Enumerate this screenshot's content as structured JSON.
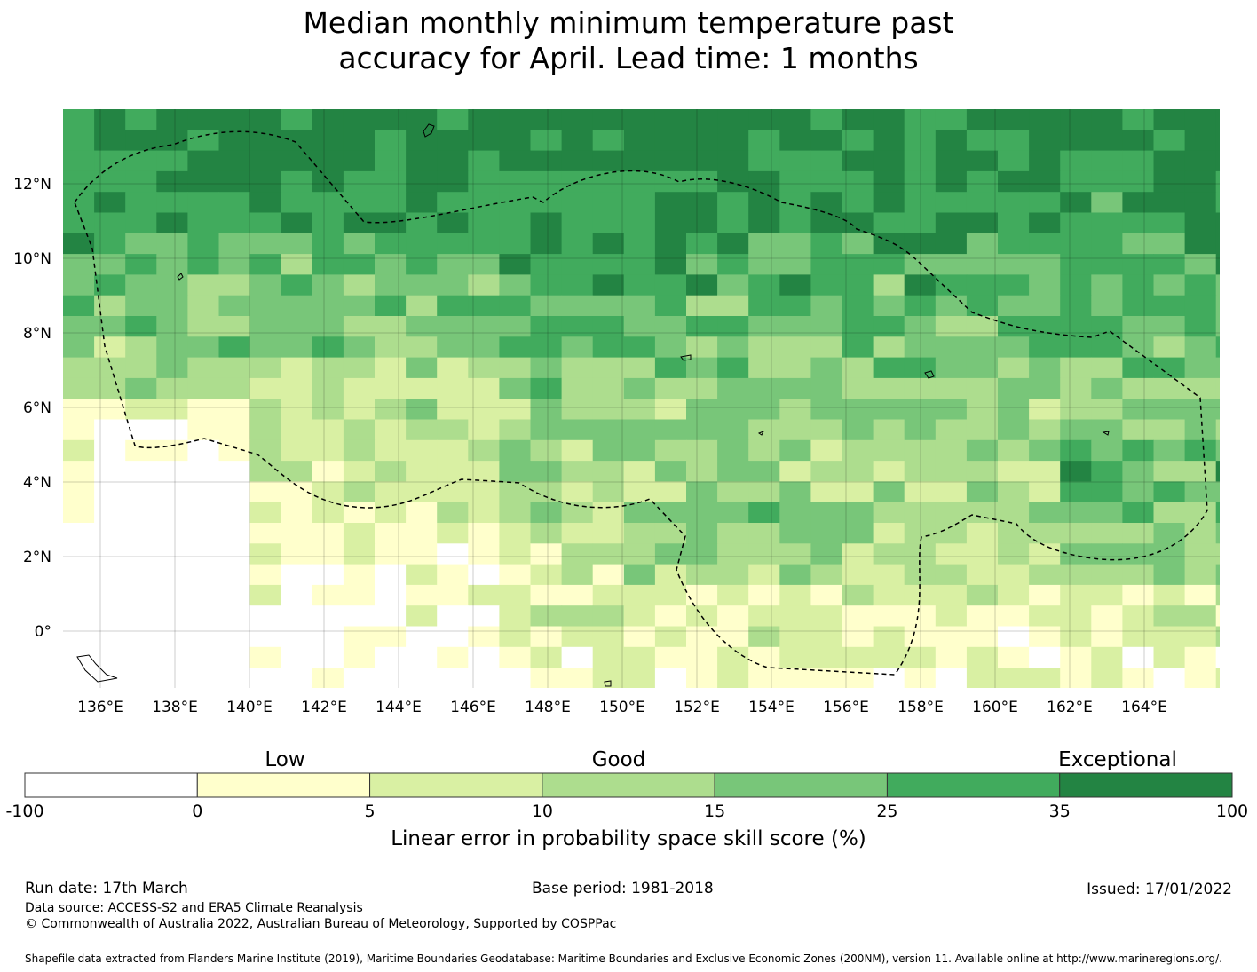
{
  "title_line1": "Median monthly minimum temperature past",
  "title_line2": "accuracy for April. Lead time: 1 months",
  "map": {
    "lon_labels": [
      "136°E",
      "138°E",
      "140°E",
      "142°E",
      "144°E",
      "146°E",
      "148°E",
      "150°E",
      "152°E",
      "154°E",
      "156°E",
      "158°E",
      "160°E",
      "162°E",
      "164°E"
    ],
    "lat_labels": [
      "12°N",
      "10°N",
      "8°N",
      "6°N",
      "4°N",
      "2°N",
      "0°"
    ],
    "colors": [
      "#ffffff",
      "#ffffcc",
      "#d9f0a3",
      "#addd8e",
      "#78c679",
      "#41ab5d",
      "#238443"
    ]
  },
  "colorbar": {
    "category_labels": [
      "Low",
      "Good",
      "Exceptional"
    ],
    "ticks": [
      "-100",
      "0",
      "5",
      "10",
      "15",
      "25",
      "35",
      "100"
    ],
    "colors": [
      "#ffffff",
      "#ffffcc",
      "#d9f0a3",
      "#addd8e",
      "#78c679",
      "#41ab5d",
      "#238443"
    ],
    "title": "Linear error in probability space skill score (%)"
  },
  "footer": {
    "run_date": "Run date: 17th March",
    "base_period": "Base period: 1981-2018",
    "issued": "Issued: 17/01/2022",
    "data_source": "Data source: ACCESS-S2 and ERA5 Climate Reanalysis",
    "copyright": "© Commonwealth of Australia 2022, Australian Bureau of Meteorology, Supported by COSPPac",
    "shapefile": "Shapefile data extracted from Flanders Marine Institute (2019), Maritime Boundaries Geodatabase: Maritime Boundaries and Exclusive Economic Zones (200NM), version 11. Available online at http://www.marineregions.org/."
  }
}
